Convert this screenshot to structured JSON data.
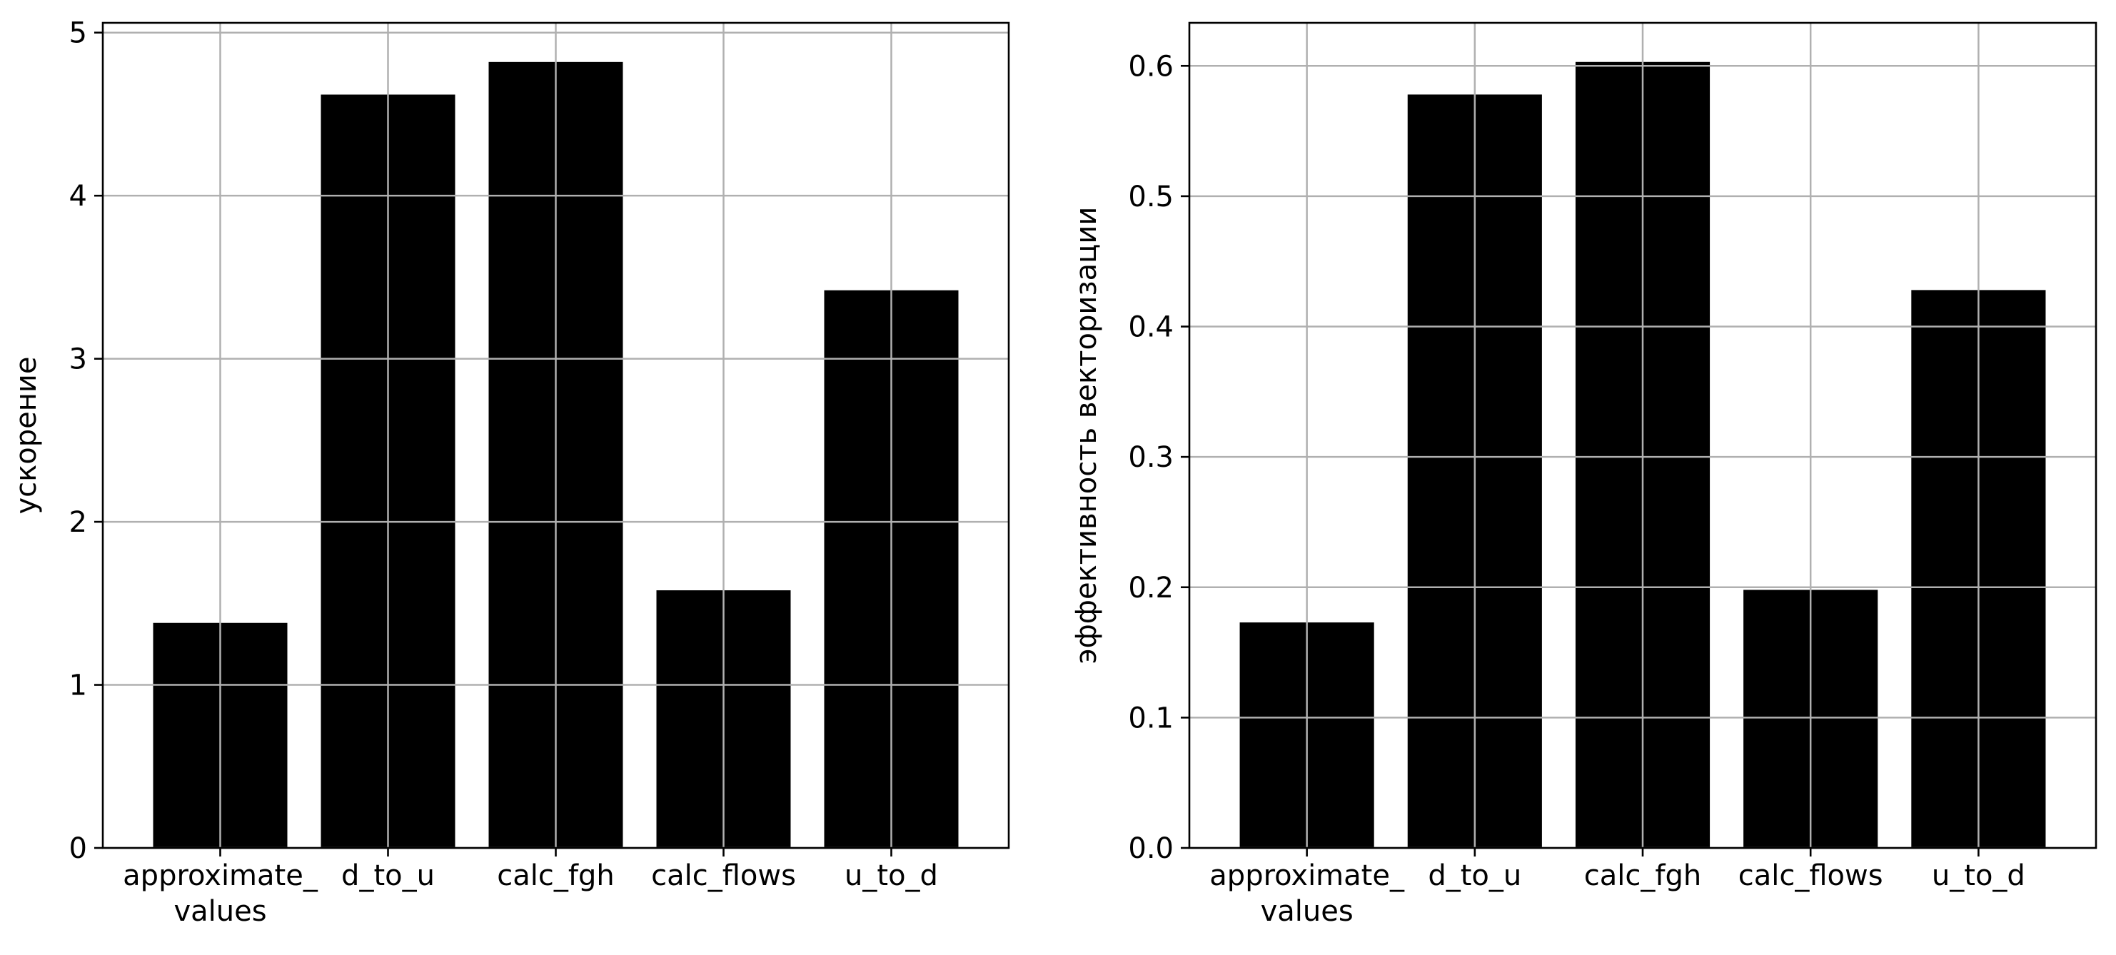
{
  "chart_data": [
    {
      "type": "bar",
      "categories": [
        "approximate_\nvalues",
        "d_to_u",
        "calc_fgh",
        "calc_flows",
        "u_to_d"
      ],
      "values": [
        1.38,
        4.62,
        4.82,
        1.58,
        3.42
      ],
      "xlabel": "",
      "ylabel": "ускорение",
      "ylim": [
        0,
        5.06
      ],
      "yticks": [
        0,
        1,
        2,
        3,
        4,
        5
      ],
      "ytick_labels": [
        "0",
        "1",
        "2",
        "3",
        "4",
        "5"
      ],
      "grid": true,
      "bar_color": "#000000",
      "grid_color": "#b0b0b0"
    },
    {
      "type": "bar",
      "categories": [
        "approximate_\nvalues",
        "d_to_u",
        "calc_fgh",
        "calc_flows",
        "u_to_d"
      ],
      "values": [
        0.173,
        0.578,
        0.603,
        0.198,
        0.428
      ],
      "xlabel": "",
      "ylabel": "эффективность векторизации",
      "ylim": [
        0,
        0.633
      ],
      "yticks": [
        0,
        0.1,
        0.2,
        0.3,
        0.4,
        0.5,
        0.6
      ],
      "ytick_labels": [
        "0.0",
        "0.1",
        "0.2",
        "0.3",
        "0.4",
        "0.5",
        "0.6"
      ],
      "grid": true,
      "bar_color": "#000000",
      "grid_color": "#b0b0b0"
    }
  ]
}
